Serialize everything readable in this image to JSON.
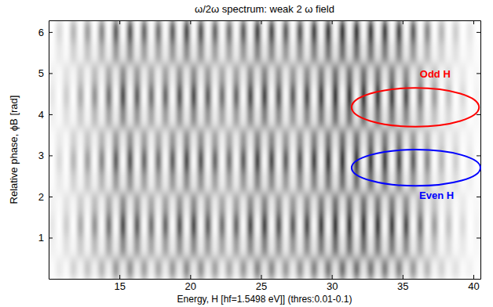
{
  "chart_data": {
    "type": "heatmap",
    "title": "ω/2ω spectrum: weak 2 ω field",
    "xlabel": "Energy, H [hf=1.5498 eV]] (thres:0.01-0.1)",
    "ylabel": "Relative phase, ϕB [rad]",
    "xlim": [
      10,
      40.5
    ],
    "ylim": [
      0,
      6.2832
    ],
    "xticks": [
      15,
      20,
      25,
      30,
      35,
      40
    ],
    "yticks": [
      1,
      2,
      3,
      4,
      5,
      6
    ],
    "grid": false,
    "zlim": [
      0,
      1
    ],
    "x_bins": [
      10,
      10.5,
      11,
      11.5,
      12,
      12.5,
      13,
      13.5,
      14,
      14.5,
      15,
      15.5,
      16,
      16.5,
      17,
      17.5,
      18,
      18.5,
      19,
      19.5,
      20,
      20.5,
      21,
      21.5,
      22,
      22.5,
      23,
      23.5,
      24,
      24.5,
      25,
      25.5,
      26,
      26.5,
      27,
      27.5,
      28,
      28.5,
      29,
      29.5,
      30,
      30.5,
      31,
      31.5,
      32,
      32.5,
      33,
      33.5,
      34,
      34.5,
      35,
      35.5,
      36,
      36.5,
      37,
      37.5,
      38,
      38.5,
      39,
      39.5,
      40,
      40.5
    ],
    "y_bins": [
      0,
      0.5236,
      1.0472,
      1.5708,
      2.0944,
      2.618,
      3.1416,
      3.6652,
      4.1888,
      4.7124,
      5.236,
      5.7596,
      6.2832
    ],
    "cells": [
      [
        0.01,
        0.09,
        0.02,
        0.18,
        0.04,
        0.24,
        0.05,
        0.3,
        0.06,
        0.42,
        0.08,
        0.45,
        0.07,
        0.39,
        0.06,
        0.36,
        0.07,
        0.42,
        0.08,
        0.48,
        0.08,
        0.45,
        0.07,
        0.39,
        0.06,
        0.36,
        0.07,
        0.42,
        0.08,
        0.51,
        0.09,
        0.48,
        0.08,
        0.42,
        0.07,
        0.45,
        0.08,
        0.51,
        0.09,
        0.57,
        0.1,
        0.6,
        0.1,
        0.6,
        0.1,
        0.57,
        0.1,
        0.54,
        0.09,
        0.51,
        0.08,
        0.42,
        0.06,
        0.3,
        0.04,
        0.18,
        0.03,
        0.12,
        0.02,
        0.06,
        0.01
      ],
      [
        0.06,
        0.02,
        0.12,
        0.03,
        0.21,
        0.04,
        0.27,
        0.05,
        0.36,
        0.07,
        0.48,
        0.08,
        0.42,
        0.07,
        0.36,
        0.06,
        0.39,
        0.07,
        0.45,
        0.08,
        0.48,
        0.08,
        0.42,
        0.07,
        0.36,
        0.06,
        0.39,
        0.07,
        0.48,
        0.09,
        0.51,
        0.08,
        0.45,
        0.07,
        0.42,
        0.08,
        0.48,
        0.09,
        0.54,
        0.1,
        0.6,
        0.1,
        0.6,
        0.1,
        0.6,
        0.1,
        0.57,
        0.09,
        0.54,
        0.09,
        0.48,
        0.07,
        0.36,
        0.05,
        0.24,
        0.03,
        0.15,
        0.02,
        0.09,
        0.01,
        0.03
      ],
      [
        0.1,
        0,
        0.2,
        0,
        0.35,
        0,
        0.45,
        0,
        0.6,
        0,
        0.8,
        0,
        0.7,
        0,
        0.6,
        0,
        0.65,
        0,
        0.75,
        0,
        0.8,
        0,
        0.7,
        0,
        0.6,
        0,
        0.65,
        0,
        0.8,
        0,
        0.85,
        0,
        0.75,
        0,
        0.7,
        0,
        0.8,
        0,
        0.9,
        0,
        1,
        0,
        1,
        0,
        1,
        0,
        0.95,
        0,
        0.9,
        0,
        0.8,
        0,
        0.6,
        0,
        0.4,
        0,
        0.25,
        0,
        0.15,
        0,
        0.05
      ],
      [
        0.06,
        0.02,
        0.12,
        0.03,
        0.21,
        0.04,
        0.27,
        0.05,
        0.36,
        0.07,
        0.48,
        0.08,
        0.42,
        0.07,
        0.36,
        0.06,
        0.39,
        0.07,
        0.45,
        0.08,
        0.48,
        0.08,
        0.42,
        0.07,
        0.36,
        0.06,
        0.39,
        0.07,
        0.48,
        0.09,
        0.51,
        0.08,
        0.45,
        0.07,
        0.42,
        0.08,
        0.48,
        0.09,
        0.54,
        0.1,
        0.6,
        0.1,
        0.6,
        0.1,
        0.6,
        0.1,
        0.57,
        0.09,
        0.54,
        0.09,
        0.48,
        0.07,
        0.36,
        0.05,
        0.24,
        0.03,
        0.15,
        0.02,
        0.09,
        0.01,
        0.03
      ],
      [
        0.01,
        0.09,
        0.02,
        0.18,
        0.04,
        0.24,
        0.05,
        0.3,
        0.06,
        0.42,
        0.08,
        0.45,
        0.07,
        0.39,
        0.06,
        0.36,
        0.07,
        0.42,
        0.08,
        0.48,
        0.08,
        0.45,
        0.07,
        0.39,
        0.06,
        0.36,
        0.07,
        0.42,
        0.08,
        0.51,
        0.09,
        0.48,
        0.08,
        0.42,
        0.07,
        0.45,
        0.08,
        0.51,
        0.09,
        0.57,
        0.1,
        0.6,
        0.1,
        0.6,
        0.1,
        0.57,
        0.1,
        0.54,
        0.09,
        0.51,
        0.08,
        0.42,
        0.06,
        0.3,
        0.04,
        0.18,
        0.03,
        0.12,
        0.02,
        0.06,
        0.01
      ],
      [
        0,
        0.15,
        0,
        0.3,
        0,
        0.4,
        0,
        0.5,
        0,
        0.7,
        0,
        0.75,
        0,
        0.65,
        0,
        0.6,
        0,
        0.7,
        0,
        0.8,
        0,
        0.75,
        0,
        0.65,
        0,
        0.6,
        0,
        0.7,
        0,
        0.85,
        0,
        0.8,
        0,
        0.7,
        0,
        0.75,
        0,
        0.85,
        0,
        0.95,
        0,
        1,
        0,
        1,
        0,
        0.95,
        0,
        0.9,
        0,
        0.85,
        0,
        0.7,
        0,
        0.5,
        0,
        0.3,
        0,
        0.2,
        0,
        0.1,
        0
      ],
      [
        0.01,
        0.09,
        0.02,
        0.18,
        0.04,
        0.24,
        0.05,
        0.3,
        0.06,
        0.42,
        0.08,
        0.45,
        0.07,
        0.39,
        0.06,
        0.36,
        0.07,
        0.42,
        0.08,
        0.48,
        0.08,
        0.45,
        0.07,
        0.39,
        0.06,
        0.36,
        0.07,
        0.42,
        0.08,
        0.51,
        0.09,
        0.48,
        0.08,
        0.42,
        0.07,
        0.45,
        0.08,
        0.51,
        0.09,
        0.57,
        0.1,
        0.6,
        0.1,
        0.6,
        0.1,
        0.57,
        0.1,
        0.54,
        0.09,
        0.51,
        0.08,
        0.42,
        0.06,
        0.3,
        0.04,
        0.18,
        0.03,
        0.12,
        0.02,
        0.06,
        0.01
      ],
      [
        0.06,
        0.02,
        0.12,
        0.03,
        0.21,
        0.04,
        0.27,
        0.05,
        0.36,
        0.07,
        0.48,
        0.08,
        0.42,
        0.07,
        0.36,
        0.06,
        0.39,
        0.07,
        0.45,
        0.08,
        0.48,
        0.08,
        0.42,
        0.07,
        0.36,
        0.06,
        0.39,
        0.07,
        0.48,
        0.09,
        0.51,
        0.08,
        0.45,
        0.07,
        0.42,
        0.08,
        0.48,
        0.09,
        0.54,
        0.1,
        0.6,
        0.1,
        0.6,
        0.1,
        0.6,
        0.1,
        0.57,
        0.09,
        0.54,
        0.09,
        0.48,
        0.07,
        0.36,
        0.05,
        0.24,
        0.03,
        0.15,
        0.02,
        0.09,
        0.01,
        0.03
      ],
      [
        0.1,
        0,
        0.2,
        0,
        0.35,
        0,
        0.45,
        0,
        0.6,
        0,
        0.8,
        0,
        0.7,
        0,
        0.6,
        0,
        0.65,
        0,
        0.75,
        0,
        0.8,
        0,
        0.7,
        0,
        0.6,
        0,
        0.65,
        0,
        0.8,
        0,
        0.85,
        0,
        0.75,
        0,
        0.7,
        0,
        0.8,
        0,
        0.9,
        0,
        1,
        0,
        1,
        0,
        1,
        0,
        0.95,
        0,
        0.9,
        0,
        0.8,
        0,
        0.6,
        0,
        0.4,
        0,
        0.25,
        0,
        0.15,
        0,
        0.05
      ],
      [
        0.06,
        0.02,
        0.12,
        0.03,
        0.21,
        0.04,
        0.27,
        0.05,
        0.36,
        0.07,
        0.48,
        0.08,
        0.42,
        0.07,
        0.36,
        0.06,
        0.39,
        0.07,
        0.45,
        0.08,
        0.48,
        0.08,
        0.42,
        0.07,
        0.36,
        0.06,
        0.39,
        0.07,
        0.48,
        0.09,
        0.51,
        0.08,
        0.45,
        0.07,
        0.42,
        0.08,
        0.48,
        0.09,
        0.54,
        0.1,
        0.6,
        0.1,
        0.6,
        0.1,
        0.6,
        0.1,
        0.57,
        0.09,
        0.54,
        0.09,
        0.48,
        0.07,
        0.36,
        0.05,
        0.24,
        0.03,
        0.15,
        0.02,
        0.09,
        0.01,
        0.03
      ],
      [
        0.01,
        0.09,
        0.02,
        0.18,
        0.04,
        0.24,
        0.05,
        0.3,
        0.06,
        0.42,
        0.08,
        0.45,
        0.07,
        0.39,
        0.06,
        0.36,
        0.07,
        0.42,
        0.08,
        0.48,
        0.08,
        0.45,
        0.07,
        0.39,
        0.06,
        0.36,
        0.07,
        0.42,
        0.08,
        0.51,
        0.09,
        0.48,
        0.08,
        0.42,
        0.07,
        0.45,
        0.08,
        0.51,
        0.09,
        0.57,
        0.1,
        0.6,
        0.1,
        0.6,
        0.1,
        0.57,
        0.1,
        0.54,
        0.09,
        0.51,
        0.08,
        0.42,
        0.06,
        0.3,
        0.04,
        0.18,
        0.03,
        0.12,
        0.02,
        0.06,
        0.01
      ],
      [
        0,
        0.15,
        0,
        0.3,
        0,
        0.4,
        0,
        0.5,
        0,
        0.7,
        0,
        0.75,
        0,
        0.65,
        0,
        0.6,
        0,
        0.7,
        0,
        0.8,
        0,
        0.75,
        0,
        0.65,
        0,
        0.6,
        0,
        0.7,
        0,
        0.85,
        0,
        0.8,
        0,
        0.7,
        0,
        0.75,
        0,
        0.85,
        0,
        0.95,
        0,
        1,
        0,
        1,
        0,
        0.95,
        0,
        0.9,
        0,
        0.85,
        0,
        0.7,
        0,
        0.5,
        0,
        0.3,
        0,
        0.2,
        0,
        0.1,
        0
      ]
    ],
    "annotations": [
      {
        "text": "Odd H",
        "color": "#ff0000",
        "x": 37.3,
        "y": 4.95,
        "cx": 35.9,
        "cy": 4.17,
        "rx": 4.5,
        "ry": 0.47
      },
      {
        "text": "Even H",
        "color": "#0000ff",
        "x": 37.4,
        "y": 2.0,
        "cx": 35.95,
        "cy": 2.7,
        "rx": 4.55,
        "ry": 0.44
      }
    ]
  }
}
